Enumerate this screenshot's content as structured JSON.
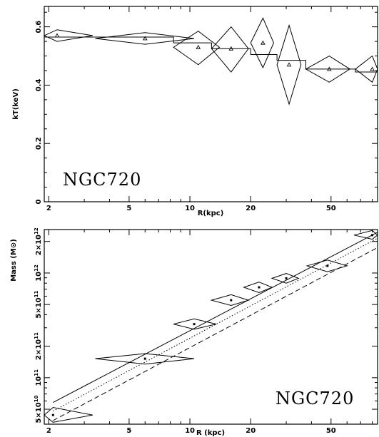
{
  "chart_data": [
    {
      "type": "scatter",
      "title": "",
      "annotation": "NGC720",
      "xlabel": "R(kpc)",
      "ylabel": "kT(keV)",
      "x_scale": "log",
      "xlim": [
        1.9,
        85
      ],
      "ylim": [
        0,
        0.67
      ],
      "x_ticks": [
        "2",
        "5",
        "10",
        "20",
        "50"
      ],
      "y_ticks": [
        "0",
        "0.2",
        "0.4",
        "0.6"
      ],
      "grid": false,
      "series": [
        {
          "marker": "triangle",
          "x": [
            2.2,
            6.0,
            11.0,
            16.0,
            23.0,
            31.0,
            49.0,
            80.0
          ],
          "y": [
            0.57,
            0.56,
            0.53,
            0.525,
            0.545,
            0.47,
            0.455,
            0.455
          ],
          "x_low": [
            1.9,
            3.4,
            8.3,
            12.8,
            20.0,
            27.0,
            37.5,
            66.0
          ],
          "x_high": [
            3.3,
            10.5,
            14.0,
            19.5,
            26.0,
            35.5,
            62.0,
            85.0
          ],
          "y_low": [
            0.55,
            0.54,
            0.47,
            0.445,
            0.46,
            0.335,
            0.41,
            0.41
          ],
          "y_high": [
            0.59,
            0.58,
            0.585,
            0.6,
            0.63,
            0.605,
            0.5,
            0.5
          ]
        },
        {
          "type": "step",
          "bins": [
            [
              1.9,
              3.4
            ],
            [
              3.4,
              8.3
            ],
            [
              8.3,
              12.8
            ],
            [
              12.8,
              20.0
            ],
            [
              20.0,
              27.0
            ],
            [
              27.0,
              37.5
            ],
            [
              37.5,
              66.0
            ],
            [
              66.0,
              85.0
            ]
          ],
          "y": [
            0.565,
            0.565,
            0.545,
            0.525,
            0.505,
            0.485,
            0.455,
            0.445
          ]
        }
      ]
    },
    {
      "type": "line",
      "title": "",
      "annotation": "NGC720",
      "xlabel": "R (kpc)",
      "ylabel": "Mass (M⊙)",
      "x_scale": "log",
      "y_scale": "log",
      "xlim": [
        1.9,
        85
      ],
      "ylim": [
        36000000000.0,
        2600000000000.0
      ],
      "x_ticks": [
        "2",
        "5",
        "10",
        "20",
        "50"
      ],
      "y_ticks": [
        {
          "value": 50000000000.0,
          "mant": "5×10",
          "exp": "10"
        },
        {
          "value": 100000000000.0,
          "mant": "10",
          "exp": "11"
        },
        {
          "value": 200000000000.0,
          "mant": "2×10",
          "exp": "11"
        },
        {
          "value": 500000000000.0,
          "mant": "5×10",
          "exp": "11"
        },
        {
          "value": 1000000000000.0,
          "mant": "10",
          "exp": "12"
        },
        {
          "value": 2000000000000.0,
          "mant": "2×10",
          "exp": "12"
        }
      ],
      "grid": false,
      "series": [
        {
          "style": "solid",
          "x": [
            2.1,
            85
          ],
          "y": [
            58000000000.0,
            2450000000000.0
          ]
        },
        {
          "style": "dotted",
          "x": [
            2.1,
            85
          ],
          "y": [
            48000000000.0,
            2150000000000.0
          ]
        },
        {
          "style": "dashed",
          "x": [
            2.1,
            85
          ],
          "y": [
            39000000000.0,
            1750000000000.0
          ]
        },
        {
          "style": "points",
          "x": [
            2.1,
            6.0,
            10.5,
            16.0,
            22.0,
            30.0,
            48.0,
            80.0
          ],
          "y": [
            44000000000.0,
            152000000000.0,
            325000000000.0,
            550000000000.0,
            730000000000.0,
            890000000000.0,
            1170000000000.0,
            2300000000000.0
          ],
          "x_low": [
            1.9,
            3.4,
            8.3,
            12.8,
            18.5,
            25.5,
            38.0,
            65.0
          ],
          "x_high": [
            3.3,
            10.5,
            13.5,
            19.5,
            25.5,
            34.5,
            60.0,
            85.0
          ],
          "y_low": [
            37500000000.0,
            135000000000.0,
            290000000000.0,
            490000000000.0,
            650000000000.0,
            800000000000.0,
            1030000000000.0,
            2100000000000.0
          ],
          "y_high": [
            52000000000.0,
            170000000000.0,
            365000000000.0,
            620000000000.0,
            820000000000.0,
            990000000000.0,
            1330000000000.0,
            2550000000000.0
          ]
        }
      ]
    }
  ]
}
